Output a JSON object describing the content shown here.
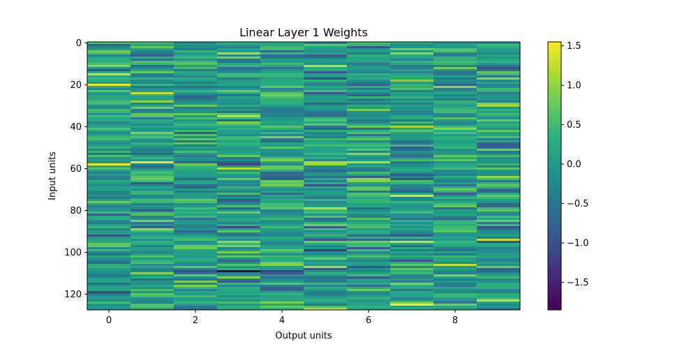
{
  "chart_data": {
    "type": "heatmap",
    "title": "Linear Layer 1 Weights",
    "xlabel": "Output units",
    "ylabel": "Input units",
    "n_cols": 10,
    "n_rows": 128,
    "x_ticks": [
      0,
      2,
      4,
      6,
      8
    ],
    "y_ticks": [
      0,
      20,
      40,
      60,
      80,
      100,
      120
    ],
    "y_inverted": true,
    "colormap": "viridis",
    "colorbar": {
      "vmin": -1.85,
      "vmax": 1.55,
      "ticks": [
        1.5,
        1.0,
        0.5,
        0.0,
        -0.5,
        -1.0,
        -1.5
      ],
      "tick_labels": [
        "1.5",
        "1.0",
        "0.5",
        "0.0",
        "−0.5",
        "−1.0",
        "−1.5"
      ]
    },
    "notable_values": [
      {
        "row": 109,
        "col": 3,
        "value": -1.85
      },
      {
        "row": 125,
        "col": 7,
        "value": 1.5
      },
      {
        "row": 20,
        "col": 0,
        "value": 1.5
      },
      {
        "row": 58,
        "col": 0,
        "value": 1.5
      },
      {
        "row": 57,
        "col": 1,
        "value": 1.5
      },
      {
        "row": 60,
        "col": 3,
        "value": 1.2
      },
      {
        "row": 73,
        "col": 7,
        "value": 1.4
      },
      {
        "row": 95,
        "col": 7,
        "value": 1.3
      },
      {
        "row": 106,
        "col": 8,
        "value": 1.3
      },
      {
        "row": 94,
        "col": 9,
        "value": 1.3
      }
    ],
    "grid": false
  }
}
